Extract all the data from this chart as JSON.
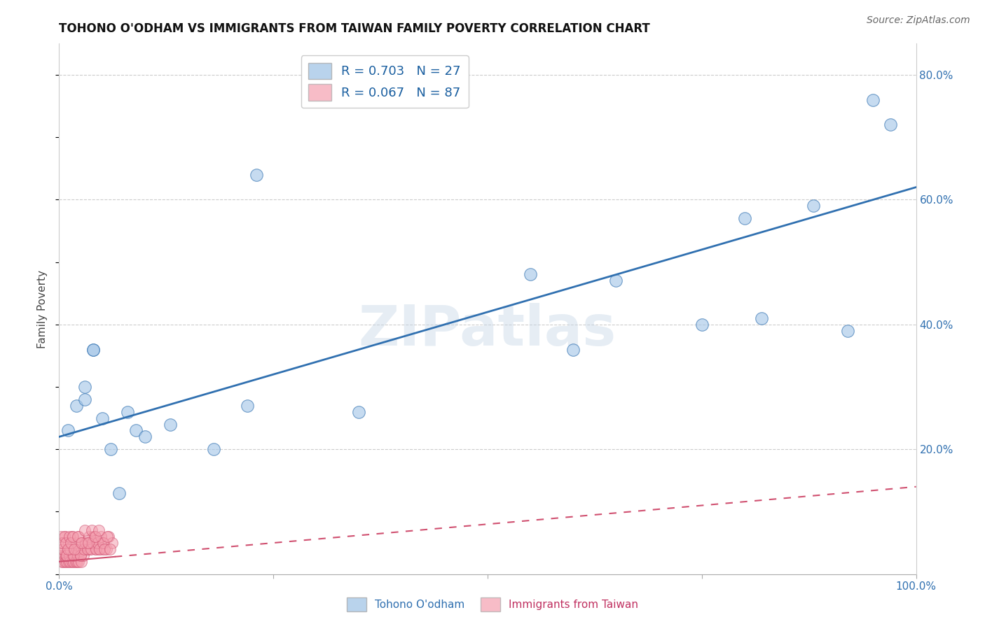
{
  "title": "TOHONO O'ODHAM VS IMMIGRANTS FROM TAIWAN FAMILY POVERTY CORRELATION CHART",
  "source": "Source: ZipAtlas.com",
  "ylabel": "Family Poverty",
  "xlim": [
    0,
    1.0
  ],
  "ylim": [
    0,
    0.85
  ],
  "x_ticks": [
    0.0,
    0.25,
    0.5,
    0.75,
    1.0
  ],
  "x_tick_labels": [
    "0.0%",
    "",
    "",
    "",
    "100.0%"
  ],
  "y_ticks_right": [
    0.0,
    0.2,
    0.4,
    0.6,
    0.8
  ],
  "y_tick_labels_right": [
    "",
    "20.0%",
    "40.0%",
    "60.0%",
    "80.0%"
  ],
  "legend_blue_r": "R = 0.703",
  "legend_blue_n": "N = 27",
  "legend_pink_r": "R = 0.067",
  "legend_pink_n": "N = 87",
  "blue_color": "#a8c8e8",
  "pink_color": "#f4a0b0",
  "blue_line_color": "#3070b0",
  "pink_line_color": "#d05070",
  "watermark_text": "ZIPatlas",
  "blue_scatter_x": [
    0.01,
    0.02,
    0.03,
    0.03,
    0.04,
    0.04,
    0.05,
    0.06,
    0.07,
    0.08,
    0.09,
    0.1,
    0.13,
    0.18,
    0.22,
    0.23,
    0.35,
    0.55,
    0.6,
    0.65,
    0.75,
    0.8,
    0.82,
    0.88,
    0.92,
    0.95,
    0.97
  ],
  "blue_scatter_y": [
    0.23,
    0.27,
    0.28,
    0.3,
    0.36,
    0.36,
    0.25,
    0.2,
    0.13,
    0.26,
    0.23,
    0.22,
    0.24,
    0.2,
    0.27,
    0.64,
    0.26,
    0.48,
    0.36,
    0.47,
    0.4,
    0.57,
    0.41,
    0.59,
    0.39,
    0.76,
    0.72
  ],
  "pink_scatter_x": [
    0.001,
    0.002,
    0.003,
    0.004,
    0.005,
    0.006,
    0.007,
    0.008,
    0.009,
    0.01,
    0.011,
    0.012,
    0.013,
    0.014,
    0.015,
    0.016,
    0.017,
    0.018,
    0.019,
    0.02,
    0.021,
    0.022,
    0.023,
    0.024,
    0.025,
    0.026,
    0.027,
    0.028,
    0.03,
    0.032,
    0.034,
    0.036,
    0.038,
    0.04,
    0.042,
    0.044,
    0.046,
    0.048,
    0.05,
    0.052,
    0.055,
    0.058,
    0.062,
    0.003,
    0.005,
    0.007,
    0.009,
    0.011,
    0.013,
    0.015,
    0.017,
    0.019,
    0.021,
    0.023,
    0.025,
    0.027,
    0.029,
    0.031,
    0.033,
    0.035,
    0.037,
    0.039,
    0.041,
    0.043,
    0.045,
    0.047,
    0.049,
    0.051,
    0.053,
    0.056,
    0.059,
    0.002,
    0.004,
    0.006,
    0.008,
    0.01,
    0.012,
    0.014,
    0.016,
    0.018,
    0.022,
    0.026,
    0.03,
    0.034,
    0.038,
    0.042,
    0.046
  ],
  "pink_scatter_y": [
    0.03,
    0.03,
    0.02,
    0.04,
    0.02,
    0.03,
    0.02,
    0.03,
    0.02,
    0.04,
    0.02,
    0.03,
    0.02,
    0.04,
    0.02,
    0.03,
    0.02,
    0.03,
    0.02,
    0.04,
    0.02,
    0.03,
    0.02,
    0.04,
    0.03,
    0.02,
    0.04,
    0.03,
    0.05,
    0.04,
    0.05,
    0.04,
    0.05,
    0.06,
    0.04,
    0.05,
    0.04,
    0.05,
    0.04,
    0.05,
    0.04,
    0.06,
    0.05,
    0.05,
    0.04,
    0.06,
    0.03,
    0.05,
    0.04,
    0.06,
    0.03,
    0.05,
    0.04,
    0.06,
    0.03,
    0.05,
    0.04,
    0.05,
    0.04,
    0.06,
    0.04,
    0.05,
    0.06,
    0.04,
    0.05,
    0.04,
    0.06,
    0.05,
    0.04,
    0.06,
    0.04,
    0.06,
    0.05,
    0.06,
    0.05,
    0.04,
    0.06,
    0.05,
    0.06,
    0.04,
    0.06,
    0.05,
    0.07,
    0.05,
    0.07,
    0.06,
    0.07
  ],
  "blue_line_x0": 0.0,
  "blue_line_y0": 0.22,
  "blue_line_x1": 1.0,
  "blue_line_y1": 0.62,
  "pink_line_x0": 0.0,
  "pink_line_y0": 0.02,
  "pink_line_x1": 1.0,
  "pink_line_y1": 0.14,
  "pink_solid_cutoff": 0.065,
  "background_color": "#ffffff",
  "grid_color": "#cccccc"
}
